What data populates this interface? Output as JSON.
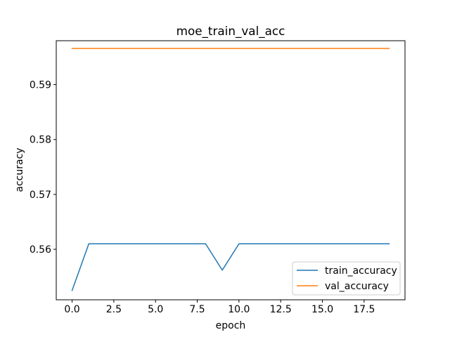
{
  "chart_data": {
    "type": "line",
    "title": "moe_train_val_acc",
    "xlabel": "epoch",
    "ylabel": "accuracy",
    "xlim": [
      -0.95,
      19.95
    ],
    "ylim": [
      0.5508,
      0.598
    ],
    "xticks": [
      0.0,
      2.5,
      5.0,
      7.5,
      10.0,
      12.5,
      15.0,
      17.5
    ],
    "xtick_labels": [
      "0.0",
      "2.5",
      "5.0",
      "7.5",
      "10.0",
      "12.5",
      "15.0",
      "17.5"
    ],
    "yticks": [
      0.56,
      0.57,
      0.58,
      0.59
    ],
    "ytick_labels": [
      "0.56",
      "0.57",
      "0.58",
      "0.59"
    ],
    "grid": false,
    "legend_position": "lower-right",
    "x": [
      0,
      1,
      2,
      3,
      4,
      5,
      6,
      7,
      8,
      9,
      10,
      11,
      12,
      13,
      14,
      15,
      16,
      17,
      18,
      19
    ],
    "series": [
      {
        "name": "train_accuracy",
        "color": "#1f77b4",
        "values": [
          0.5525,
          0.561,
          0.561,
          0.561,
          0.561,
          0.561,
          0.561,
          0.561,
          0.561,
          0.5562,
          0.561,
          0.561,
          0.561,
          0.561,
          0.561,
          0.561,
          0.561,
          0.561,
          0.561,
          0.561
        ]
      },
      {
        "name": "val_accuracy",
        "color": "#ff7f0e",
        "values": [
          0.5966,
          0.5966,
          0.5966,
          0.5966,
          0.5966,
          0.5966,
          0.5966,
          0.5966,
          0.5966,
          0.5966,
          0.5966,
          0.5966,
          0.5966,
          0.5966,
          0.5966,
          0.5966,
          0.5966,
          0.5966,
          0.5966,
          0.5966
        ]
      }
    ]
  }
}
